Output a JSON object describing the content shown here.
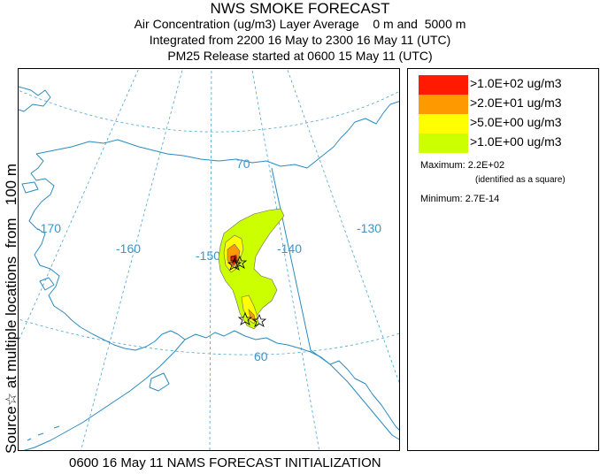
{
  "title": {
    "main": "NWS SMOKE FORECAST",
    "line1": "Air Concentration (ug/m3) Layer Average    0 m and  5000 m",
    "line2": "Integrated from 2200 16 May to 2300 16 May 11 (UTC)",
    "line3": "PM25 Release started at 0600 15 May 11 (UTC)"
  },
  "side_label": "Source☆ at multiple locations  from   100 m",
  "footer": "0600 16 May 11 NAMS FORECAST INITIALIZATION",
  "map": {
    "lon_labels": [
      "-170",
      "-160",
      "-150",
      "-140",
      "-130"
    ],
    "lat_labels": [
      "70",
      "60"
    ],
    "colors": {
      "coast": "#2a8bbf",
      "grid": "#4aa3cf",
      "label": "#3c96c8"
    }
  },
  "legend": {
    "items": [
      {
        "label": ">1.0E+02 ug/m3",
        "color": "#ff1a00"
      },
      {
        "label": ">2.0E+01 ug/m3",
        "color": "#ff9900"
      },
      {
        "label": ">5.0E+00 ug/m3",
        "color": "#ffff00"
      },
      {
        "label": ">1.0E+00 ug/m3",
        "color": "#ccff00"
      }
    ],
    "maximum": "Maximum: 2.2E+02",
    "maximum_note": "(identified as a square)",
    "minimum": "Minimum: 2.7E-14"
  }
}
